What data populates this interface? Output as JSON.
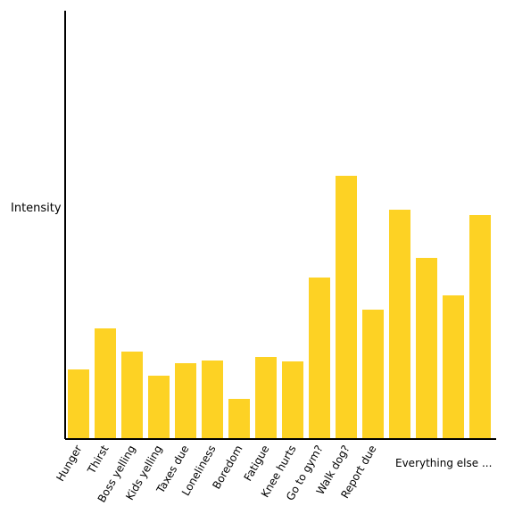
{
  "chart_data": {
    "type": "bar",
    "title": "",
    "xlabel": "",
    "ylabel": "Intensity",
    "categories": [
      "Hunger",
      "Thirst",
      "Boss yelling",
      "Kids yelling",
      "Taxes due",
      "Loneliness",
      "Boredom",
      "Fatigue",
      "Knee hurts",
      "Go to gym?",
      "Walk dog?",
      "Report due",
      "",
      "",
      "",
      ""
    ],
    "values": [
      78,
      124,
      98,
      71,
      85,
      88,
      45,
      92,
      87,
      181,
      295,
      145,
      257,
      203,
      161,
      251
    ],
    "ylim": [
      0,
      480
    ],
    "grid": false,
    "legend": "none",
    "annotation": "Everything else ...",
    "colors": {
      "bar": "#FDD224",
      "axis": "#000000",
      "text": "#000000"
    }
  }
}
